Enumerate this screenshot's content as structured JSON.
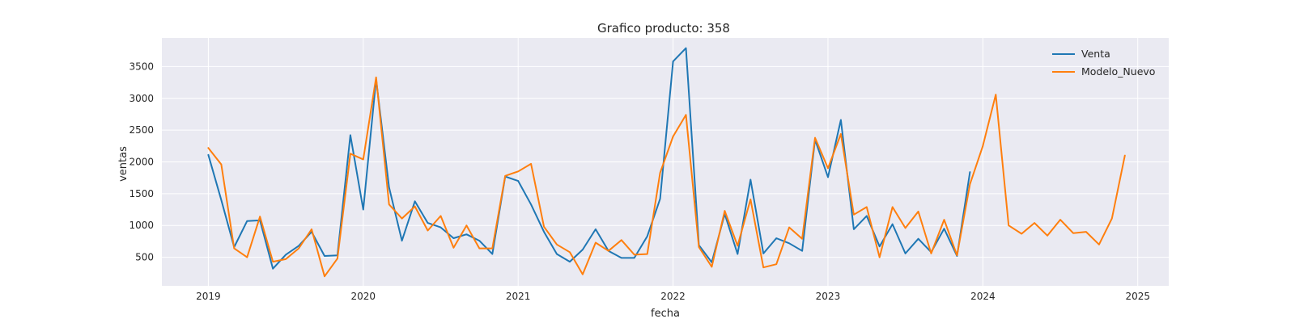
{
  "chart_data": {
    "type": "line",
    "title": "Grafico producto: 358",
    "xlabel": "fecha",
    "ylabel": "ventas",
    "x_range": [
      2018.7,
      2025.2
    ],
    "ylim": [
      50,
      3950
    ],
    "x_ticks": [
      2019,
      2020,
      2021,
      2022,
      2023,
      2024,
      2025
    ],
    "x_tick_labels": [
      "2019",
      "2020",
      "2021",
      "2022",
      "2023",
      "2024",
      "2025"
    ],
    "y_ticks": [
      500,
      1000,
      1500,
      2000,
      2500,
      3000,
      3500
    ],
    "y_tick_labels": [
      "500",
      "1000",
      "1500",
      "2000",
      "2500",
      "3000",
      "3500"
    ],
    "grid": true,
    "legend_position": "top-right",
    "series": [
      {
        "name": "Venta",
        "color": "#1f77b4",
        "start": 2019.0,
        "step_months": 1,
        "values": [
          2110,
          1400,
          660,
          1070,
          1080,
          320,
          540,
          680,
          900,
          520,
          530,
          2420,
          1250,
          3300,
          1600,
          760,
          1380,
          1040,
          970,
          800,
          860,
          760,
          550,
          1770,
          1700,
          1330,
          900,
          550,
          430,
          620,
          940,
          600,
          490,
          490,
          830,
          1420,
          3580,
          3790,
          690,
          420,
          1180,
          550,
          1720,
          560,
          800,
          720,
          600,
          2350,
          1760,
          2660,
          940,
          1150,
          670,
          1020,
          560,
          790,
          580,
          950,
          520,
          1840
        ]
      },
      {
        "name": "Modelo_Nuevo",
        "color": "#ff7f0e",
        "start": 2019.0,
        "step_months": 1,
        "values": [
          2220,
          1960,
          640,
          500,
          1140,
          430,
          470,
          640,
          940,
          200,
          480,
          2130,
          2040,
          3330,
          1330,
          1110,
          1300,
          920,
          1150,
          650,
          1000,
          640,
          640,
          1780,
          1850,
          1970,
          980,
          700,
          580,
          230,
          730,
          600,
          770,
          540,
          550,
          1830,
          2400,
          2740,
          660,
          350,
          1230,
          680,
          1410,
          340,
          390,
          970,
          790,
          2380,
          1900,
          2440,
          1170,
          1290,
          500,
          1290,
          960,
          1220,
          560,
          1090,
          530,
          1650,
          2250,
          3060,
          1000,
          870,
          1040,
          840,
          1090,
          880,
          900,
          700,
          1110,
          2100
        ]
      }
    ]
  }
}
